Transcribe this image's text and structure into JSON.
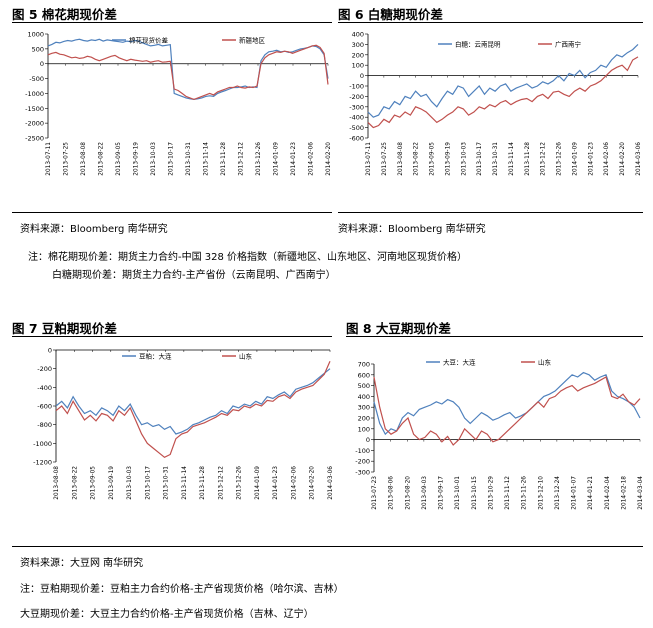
{
  "figures": [
    {
      "title": "图 5 棉花期现价差",
      "chart_data": {
        "type": "line",
        "ylim": [
          -2500,
          1000
        ],
        "yticks": [
          1000,
          500,
          0,
          -500,
          -1000,
          -1500,
          -2000,
          -2500
        ],
        "x_labels": [
          "2013-07-11",
          "2013-07-25",
          "2013-08-08",
          "2013-08-22",
          "2013-09-05",
          "2013-09-19",
          "2013-10-03",
          "2013-10-17",
          "2013-10-31",
          "2013-11-14",
          "2013-11-28",
          "2013-12-12",
          "2013-12-26",
          "2014-01-09",
          "2014-01-23",
          "2014-02-06",
          "2014-02-20"
        ],
        "legend_position": "top",
        "series": [
          {
            "name": "棉花现货价差",
            "color": "#4f81bd",
            "values": [
              600,
              650,
              720,
              700,
              750,
              780,
              760,
              800,
              820,
              780,
              760,
              800,
              780,
              820,
              760,
              800,
              780,
              760,
              740,
              720,
              760,
              740,
              780,
              760,
              700,
              650,
              600,
              620,
              650,
              600,
              620,
              640,
              -1000,
              -1050,
              -1100,
              -1150,
              -1180,
              -1200,
              -1180,
              -1150,
              -1100,
              -1080,
              -1100,
              -1000,
              -950,
              -900,
              -850,
              -800,
              -800,
              -780,
              -750,
              -800,
              -780,
              -800,
              100,
              300,
              400,
              420,
              450,
              400,
              420,
              380,
              400,
              450,
              500,
              520,
              550,
              600,
              580,
              500,
              300,
              -500
            ]
          },
          {
            "name": "新疆地区",
            "color": "#c0504d",
            "values": [
              300,
              350,
              380,
              320,
              300,
              250,
              200,
              220,
              180,
              200,
              250,
              220,
              150,
              100,
              150,
              200,
              250,
              280,
              200,
              150,
              100,
              150,
              120,
              100,
              80,
              100,
              50,
              80,
              100,
              50,
              60,
              80,
              -850,
              -900,
              -1000,
              -1100,
              -1150,
              -1200,
              -1150,
              -1100,
              -1050,
              -1000,
              -1050,
              -950,
              -900,
              -850,
              -800,
              -800,
              -750,
              -800,
              -820,
              -780,
              -800,
              -750,
              0,
              200,
              300,
              350,
              400,
              380,
              420,
              400,
              350,
              400,
              450,
              500,
              550,
              600,
              620,
              550,
              350,
              -700
            ]
          }
        ]
      }
    },
    {
      "title": "图 6 白糖期现价差",
      "chart_data": {
        "type": "line",
        "ylim": [
          -600,
          400
        ],
        "yticks": [
          400,
          300,
          200,
          100,
          0,
          -100,
          -200,
          -300,
          -400,
          -500,
          -600
        ],
        "x_labels": [
          "2013-07-11",
          "2013-07-25",
          "2013-08-08",
          "2013-08-22",
          "2013-09-05",
          "2013-09-19",
          "2013-10-03",
          "2013-10-17",
          "2013-10-31",
          "2013-11-14",
          "2013-11-28",
          "2013-12-12",
          "2013-12-26",
          "2014-01-09",
          "2014-01-23",
          "2014-02-06",
          "2014-02-20",
          "2014-03-06"
        ],
        "legend_position": "top",
        "series": [
          {
            "name": "白糖：云南昆明",
            "color": "#4f81bd",
            "values": [
              -350,
              -400,
              -380,
              -300,
              -320,
              -250,
              -280,
              -200,
              -220,
              -150,
              -200,
              -180,
              -250,
              -300,
              -220,
              -150,
              -180,
              -100,
              -120,
              -200,
              -150,
              -100,
              -180,
              -120,
              -150,
              -100,
              -80,
              -150,
              -120,
              -100,
              -80,
              -120,
              -100,
              -60,
              -80,
              -50,
              0,
              -50,
              20,
              0,
              50,
              -20,
              30,
              50,
              100,
              80,
              150,
              200,
              180,
              220,
              250,
              300
            ]
          },
          {
            "name": "广西南宁",
            "color": "#c0504d",
            "values": [
              -450,
              -500,
              -480,
              -420,
              -450,
              -380,
              -400,
              -350,
              -380,
              -300,
              -320,
              -350,
              -400,
              -450,
              -420,
              -380,
              -350,
              -300,
              -320,
              -380,
              -350,
              -300,
              -320,
              -280,
              -300,
              -260,
              -240,
              -280,
              -250,
              -230,
              -220,
              -250,
              -200,
              -180,
              -220,
              -160,
              -150,
              -180,
              -200,
              -150,
              -120,
              -150,
              -100,
              -80,
              -50,
              0,
              50,
              80,
              100,
              50,
              150,
              180
            ]
          }
        ]
      }
    },
    {
      "title": "图 7 豆粕期现价差",
      "chart_data": {
        "type": "line",
        "ylim": [
          -1200,
          0
        ],
        "yticks": [
          0,
          -200,
          -400,
          -600,
          -800,
          -1000,
          -1200
        ],
        "x_labels": [
          "2013-08-08",
          "2013-08-22",
          "2013-09-05",
          "2013-09-19",
          "2013-10-03",
          "2013-10-17",
          "2013-10-31",
          "2013-11-14",
          "2013-11-28",
          "2013-12-12",
          "2013-12-26",
          "2014-01-09",
          "2014-01-23",
          "2014-02-06",
          "2014-02-20",
          "2014-03-06"
        ],
        "legend_position": "top",
        "series": [
          {
            "name": "豆粕：大连",
            "color": "#4f81bd",
            "values": [
              -600,
              -550,
              -620,
              -500,
              -600,
              -680,
              -650,
              -700,
              -620,
              -650,
              -700,
              -600,
              -650,
              -580,
              -700,
              -800,
              -780,
              -820,
              -800,
              -850,
              -820,
              -900,
              -880,
              -850,
              -800,
              -780,
              -750,
              -720,
              -700,
              -650,
              -680,
              -600,
              -620,
              -580,
              -600,
              -550,
              -580,
              -500,
              -520,
              -480,
              -450,
              -500,
              -420,
              -400,
              -380,
              -350,
              -300,
              -250,
              -200
            ]
          },
          {
            "name": "山东",
            "color": "#c0504d",
            "values": [
              -650,
              -600,
              -680,
              -550,
              -650,
              -750,
              -700,
              -760,
              -680,
              -700,
              -760,
              -650,
              -700,
              -620,
              -760,
              -900,
              -1000,
              -1050,
              -1100,
              -1150,
              -1120,
              -950,
              -900,
              -880,
              -820,
              -800,
              -780,
              -750,
              -720,
              -680,
              -700,
              -640,
              -650,
              -600,
              -620,
              -580,
              -600,
              -540,
              -550,
              -500,
              -480,
              -520,
              -450,
              -420,
              -400,
              -380,
              -320,
              -260,
              -120
            ]
          }
        ]
      }
    },
    {
      "title": "图 8 大豆期现价差",
      "chart_data": {
        "type": "line",
        "ylim": [
          -300,
          700
        ],
        "yticks": [
          700,
          600,
          500,
          400,
          300,
          200,
          100,
          0,
          -100,
          -200,
          -300
        ],
        "x_labels": [
          "2013-07-23",
          "2013-08-06",
          "2013-08-20",
          "2013-09-03",
          "2013-09-17",
          "2013-10-01",
          "2013-10-15",
          "2013-10-29",
          "2013-11-12",
          "2013-11-26",
          "2013-12-10",
          "2013-12-24",
          "2014-01-07",
          "2014-01-21",
          "2014-02-04",
          "2014-02-18",
          "2014-03-04"
        ],
        "legend_position": "top",
        "series": [
          {
            "name": "大豆：大连",
            "color": "#4f81bd",
            "values": [
              350,
              150,
              50,
              100,
              80,
              200,
              250,
              220,
              280,
              300,
              320,
              350,
              330,
              370,
              350,
              300,
              200,
              150,
              200,
              250,
              220,
              180,
              200,
              230,
              250,
              200,
              220,
              250,
              300,
              350,
              400,
              420,
              450,
              500,
              550,
              600,
              580,
              620,
              600,
              550,
              580,
              600,
              450,
              400,
              380,
              350,
              300,
              200
            ]
          },
          {
            "name": "山东",
            "color": "#c0504d",
            "values": [
              580,
              300,
              100,
              50,
              80,
              150,
              200,
              50,
              0,
              20,
              80,
              50,
              -20,
              30,
              -50,
              0,
              100,
              50,
              0,
              80,
              50,
              -20,
              0,
              50,
              100,
              150,
              200,
              250,
              300,
              350,
              300,
              380,
              400,
              450,
              480,
              500,
              450,
              480,
              500,
              520,
              550,
              580,
              400,
              380,
              420,
              350,
              320,
              380
            ]
          }
        ]
      }
    }
  ],
  "notes": {
    "source_left": "资料来源：Bloomberg 南华研究",
    "source_right": "资料来源：Bloomberg 南华研究",
    "note1_line1": "注：棉花期现价差：期货主力合约-中国 328 价格指数（新疆地区、山东地区、河南地区现货价格）",
    "note1_line2": "白糖期现价差：期货主力合约-主产省份（云南昆明、广西南宁）",
    "source_bottom": "资料来源：大豆网 南华研究",
    "note2": "注：豆粕期现价差：豆粕主力合约价格-主产省现货价格（哈尔滨、吉林）",
    "note3": "大豆期现价差：大豆主力合约价格-主产省现货价格（吉林、辽宁）"
  }
}
